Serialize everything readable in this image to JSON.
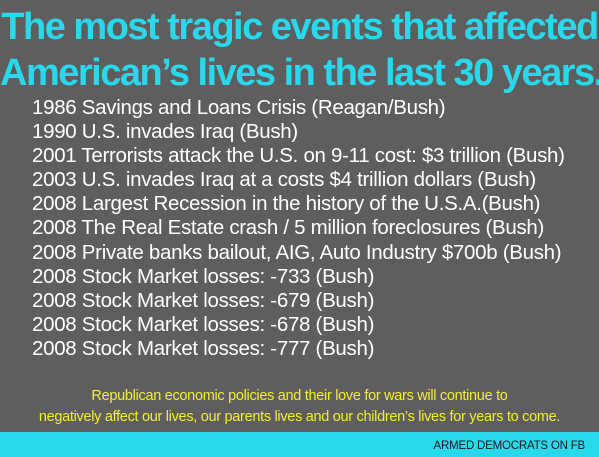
{
  "title": {
    "line1": "The most tragic events that affected",
    "line2": "American’s lives in the last 30 years."
  },
  "events": [
    "1986 Savings and Loans Crisis (Reagan/Bush)",
    "1990 U.S. invades Iraq (Bush)",
    "2001 Terrorists attack the U.S. on 9-11 cost: $3 trillion (Bush)",
    "2003 U.S. invades Iraq at a costs $4 trillion dollars (Bush)",
    "2008 Largest Recession in the history of the U.S.A.(Bush)",
    "2008 The Real Estate crash / 5 million foreclosures (Bush)",
    "2008 Private banks bailout, AIG, Auto Industry $700b (Bush)",
    "2008 Stock Market losses: -733 (Bush)",
    "2008 Stock Market losses: -679 (Bush)",
    "2008 Stock Market losses: -678 (Bush)",
    "2008 Stock Market losses: -777 (Bush)"
  ],
  "footer": {
    "line1": "Republican economic policies and their love for wars will continue to",
    "line2": "negatively affect our lives, our parents lives and our children’s lives for years to come."
  },
  "credit": "ARMED DEMOCRATS ON FB",
  "colors": {
    "background": "#5e5e5e",
    "title": "#2ad8ec",
    "events": "#ffffff",
    "footer": "#f2ef2e",
    "bar": "#2ad8ec"
  }
}
